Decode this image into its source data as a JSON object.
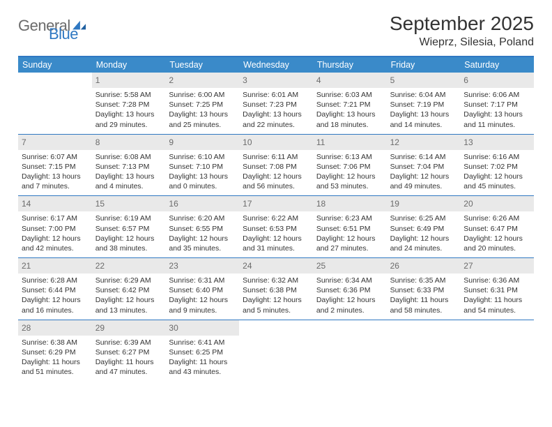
{
  "logo": {
    "text1": "General",
    "text2": "Blue"
  },
  "title": "September 2025",
  "location": "Wieprz, Silesia, Poland",
  "colors": {
    "accent": "#3a8ac9",
    "rule": "#2f78c2",
    "band": "#e9e9e9",
    "text": "#333333",
    "muted": "#6b6b6b",
    "background": "#ffffff"
  },
  "day_headers": [
    "Sunday",
    "Monday",
    "Tuesday",
    "Wednesday",
    "Thursday",
    "Friday",
    "Saturday"
  ],
  "weeks": [
    [
      {
        "n": "",
        "sunrise": "",
        "sunset": "",
        "daylight1": "",
        "daylight2": ""
      },
      {
        "n": "1",
        "sunrise": "Sunrise: 5:58 AM",
        "sunset": "Sunset: 7:28 PM",
        "daylight1": "Daylight: 13 hours",
        "daylight2": "and 29 minutes."
      },
      {
        "n": "2",
        "sunrise": "Sunrise: 6:00 AM",
        "sunset": "Sunset: 7:25 PM",
        "daylight1": "Daylight: 13 hours",
        "daylight2": "and 25 minutes."
      },
      {
        "n": "3",
        "sunrise": "Sunrise: 6:01 AM",
        "sunset": "Sunset: 7:23 PM",
        "daylight1": "Daylight: 13 hours",
        "daylight2": "and 22 minutes."
      },
      {
        "n": "4",
        "sunrise": "Sunrise: 6:03 AM",
        "sunset": "Sunset: 7:21 PM",
        "daylight1": "Daylight: 13 hours",
        "daylight2": "and 18 minutes."
      },
      {
        "n": "5",
        "sunrise": "Sunrise: 6:04 AM",
        "sunset": "Sunset: 7:19 PM",
        "daylight1": "Daylight: 13 hours",
        "daylight2": "and 14 minutes."
      },
      {
        "n": "6",
        "sunrise": "Sunrise: 6:06 AM",
        "sunset": "Sunset: 7:17 PM",
        "daylight1": "Daylight: 13 hours",
        "daylight2": "and 11 minutes."
      }
    ],
    [
      {
        "n": "7",
        "sunrise": "Sunrise: 6:07 AM",
        "sunset": "Sunset: 7:15 PM",
        "daylight1": "Daylight: 13 hours",
        "daylight2": "and 7 minutes."
      },
      {
        "n": "8",
        "sunrise": "Sunrise: 6:08 AM",
        "sunset": "Sunset: 7:13 PM",
        "daylight1": "Daylight: 13 hours",
        "daylight2": "and 4 minutes."
      },
      {
        "n": "9",
        "sunrise": "Sunrise: 6:10 AM",
        "sunset": "Sunset: 7:10 PM",
        "daylight1": "Daylight: 13 hours",
        "daylight2": "and 0 minutes."
      },
      {
        "n": "10",
        "sunrise": "Sunrise: 6:11 AM",
        "sunset": "Sunset: 7:08 PM",
        "daylight1": "Daylight: 12 hours",
        "daylight2": "and 56 minutes."
      },
      {
        "n": "11",
        "sunrise": "Sunrise: 6:13 AM",
        "sunset": "Sunset: 7:06 PM",
        "daylight1": "Daylight: 12 hours",
        "daylight2": "and 53 minutes."
      },
      {
        "n": "12",
        "sunrise": "Sunrise: 6:14 AM",
        "sunset": "Sunset: 7:04 PM",
        "daylight1": "Daylight: 12 hours",
        "daylight2": "and 49 minutes."
      },
      {
        "n": "13",
        "sunrise": "Sunrise: 6:16 AM",
        "sunset": "Sunset: 7:02 PM",
        "daylight1": "Daylight: 12 hours",
        "daylight2": "and 45 minutes."
      }
    ],
    [
      {
        "n": "14",
        "sunrise": "Sunrise: 6:17 AM",
        "sunset": "Sunset: 7:00 PM",
        "daylight1": "Daylight: 12 hours",
        "daylight2": "and 42 minutes."
      },
      {
        "n": "15",
        "sunrise": "Sunrise: 6:19 AM",
        "sunset": "Sunset: 6:57 PM",
        "daylight1": "Daylight: 12 hours",
        "daylight2": "and 38 minutes."
      },
      {
        "n": "16",
        "sunrise": "Sunrise: 6:20 AM",
        "sunset": "Sunset: 6:55 PM",
        "daylight1": "Daylight: 12 hours",
        "daylight2": "and 35 minutes."
      },
      {
        "n": "17",
        "sunrise": "Sunrise: 6:22 AM",
        "sunset": "Sunset: 6:53 PM",
        "daylight1": "Daylight: 12 hours",
        "daylight2": "and 31 minutes."
      },
      {
        "n": "18",
        "sunrise": "Sunrise: 6:23 AM",
        "sunset": "Sunset: 6:51 PM",
        "daylight1": "Daylight: 12 hours",
        "daylight2": "and 27 minutes."
      },
      {
        "n": "19",
        "sunrise": "Sunrise: 6:25 AM",
        "sunset": "Sunset: 6:49 PM",
        "daylight1": "Daylight: 12 hours",
        "daylight2": "and 24 minutes."
      },
      {
        "n": "20",
        "sunrise": "Sunrise: 6:26 AM",
        "sunset": "Sunset: 6:47 PM",
        "daylight1": "Daylight: 12 hours",
        "daylight2": "and 20 minutes."
      }
    ],
    [
      {
        "n": "21",
        "sunrise": "Sunrise: 6:28 AM",
        "sunset": "Sunset: 6:44 PM",
        "daylight1": "Daylight: 12 hours",
        "daylight2": "and 16 minutes."
      },
      {
        "n": "22",
        "sunrise": "Sunrise: 6:29 AM",
        "sunset": "Sunset: 6:42 PM",
        "daylight1": "Daylight: 12 hours",
        "daylight2": "and 13 minutes."
      },
      {
        "n": "23",
        "sunrise": "Sunrise: 6:31 AM",
        "sunset": "Sunset: 6:40 PM",
        "daylight1": "Daylight: 12 hours",
        "daylight2": "and 9 minutes."
      },
      {
        "n": "24",
        "sunrise": "Sunrise: 6:32 AM",
        "sunset": "Sunset: 6:38 PM",
        "daylight1": "Daylight: 12 hours",
        "daylight2": "and 5 minutes."
      },
      {
        "n": "25",
        "sunrise": "Sunrise: 6:34 AM",
        "sunset": "Sunset: 6:36 PM",
        "daylight1": "Daylight: 12 hours",
        "daylight2": "and 2 minutes."
      },
      {
        "n": "26",
        "sunrise": "Sunrise: 6:35 AM",
        "sunset": "Sunset: 6:33 PM",
        "daylight1": "Daylight: 11 hours",
        "daylight2": "and 58 minutes."
      },
      {
        "n": "27",
        "sunrise": "Sunrise: 6:36 AM",
        "sunset": "Sunset: 6:31 PM",
        "daylight1": "Daylight: 11 hours",
        "daylight2": "and 54 minutes."
      }
    ],
    [
      {
        "n": "28",
        "sunrise": "Sunrise: 6:38 AM",
        "sunset": "Sunset: 6:29 PM",
        "daylight1": "Daylight: 11 hours",
        "daylight2": "and 51 minutes."
      },
      {
        "n": "29",
        "sunrise": "Sunrise: 6:39 AM",
        "sunset": "Sunset: 6:27 PM",
        "daylight1": "Daylight: 11 hours",
        "daylight2": "and 47 minutes."
      },
      {
        "n": "30",
        "sunrise": "Sunrise: 6:41 AM",
        "sunset": "Sunset: 6:25 PM",
        "daylight1": "Daylight: 11 hours",
        "daylight2": "and 43 minutes."
      },
      {
        "n": "",
        "sunrise": "",
        "sunset": "",
        "daylight1": "",
        "daylight2": ""
      },
      {
        "n": "",
        "sunrise": "",
        "sunset": "",
        "daylight1": "",
        "daylight2": ""
      },
      {
        "n": "",
        "sunrise": "",
        "sunset": "",
        "daylight1": "",
        "daylight2": ""
      },
      {
        "n": "",
        "sunrise": "",
        "sunset": "",
        "daylight1": "",
        "daylight2": ""
      }
    ]
  ]
}
